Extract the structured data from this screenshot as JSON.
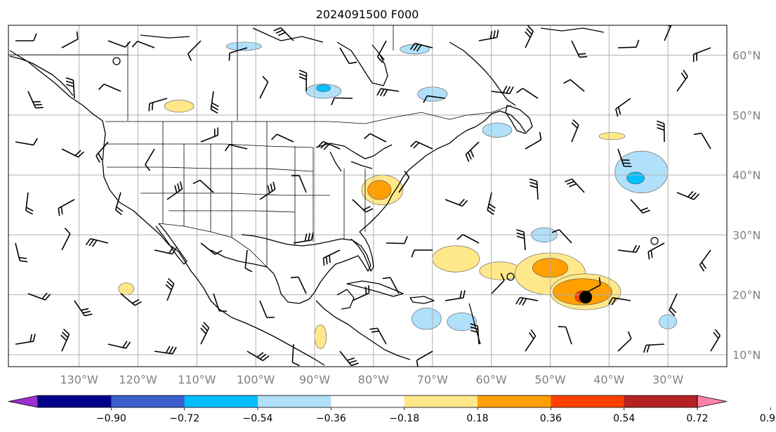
{
  "title": "2024091500 F000",
  "map": {
    "projection": "PlateCarree",
    "lon_range": [
      -142,
      -20
    ],
    "lat_range": [
      8,
      65
    ],
    "longitude_labels": [
      "130°W",
      "120°W",
      "110°W",
      "100°W",
      "90°W",
      "80°W",
      "70°W",
      "60°W",
      "50°W",
      "40°W",
      "30°W"
    ],
    "longitude_values": [
      -130,
      -120,
      -110,
      -100,
      -90,
      -80,
      -70,
      -60,
      -50,
      -40,
      -30
    ],
    "latitude_labels": [
      "60°N",
      "50°N",
      "40°N",
      "30°N",
      "20°N",
      "10°N"
    ],
    "latitude_values": [
      60,
      50,
      40,
      30,
      20,
      10
    ],
    "gridlines": true,
    "storm_center": [
      -44.5,
      19.5
    ]
  },
  "colorbar": {
    "tick_labels": [
      "−0.90",
      "−0.72",
      "−0.54",
      "−0.36",
      "−0.18",
      "0.18",
      "0.36",
      "0.54",
      "0.72",
      "0.90"
    ],
    "levels": [
      -0.9,
      -0.72,
      -0.54,
      -0.36,
      -0.18,
      0.18,
      0.36,
      0.54,
      0.72,
      0.9
    ],
    "colors": [
      "#9b30d0",
      "#00008b",
      "#3a5fcd",
      "#00bfff",
      "#b0e0fa",
      "#ffffff",
      "#ffe88a",
      "#ff9f00",
      "#ff4000",
      "#b22222",
      "#ff82ab"
    ],
    "extend": "both"
  },
  "contours": [
    {
      "level": 0.36,
      "color": "#ffe88a",
      "center": [
        -78.5,
        37.5
      ],
      "rx": 3.5,
      "ry": 2.5
    },
    {
      "level": 0.54,
      "color": "#ff9f00",
      "center": [
        -79,
        37.5
      ],
      "rx": 2,
      "ry": 1.6
    },
    {
      "level": 0.36,
      "color": "#ffe88a",
      "center": [
        -66,
        26
      ],
      "rx": 4,
      "ry": 2.2
    },
    {
      "level": 0.36,
      "color": "#ffe88a",
      "center": [
        -58.5,
        24
      ],
      "rx": 3.5,
      "ry": 1.5
    },
    {
      "level": 0.36,
      "color": "#ffe88a",
      "center": [
        -50,
        23.5
      ],
      "rx": 6,
      "ry": 3.5
    },
    {
      "level": 0.54,
      "color": "#ff9f00",
      "center": [
        -50,
        24.5
      ],
      "rx": 3,
      "ry": 1.6
    },
    {
      "level": 0.36,
      "color": "#ffe88a",
      "center": [
        -44,
        20.5
      ],
      "rx": 6,
      "ry": 3
    },
    {
      "level": 0.54,
      "color": "#ff9f00",
      "center": [
        -44.5,
        20.5
      ],
      "rx": 5,
      "ry": 2.2
    },
    {
      "level": 0.72,
      "color": "#ff4000",
      "center": [
        -44.5,
        19.7
      ],
      "rx": 1.3,
      "ry": 1
    },
    {
      "level": -0.18,
      "color": "#b0e0fa",
      "center": [
        -34.5,
        40.5
      ],
      "rx": 4.5,
      "ry": 3.5
    },
    {
      "level": -0.36,
      "color": "#00bfff",
      "center": [
        -35.5,
        39.5
      ],
      "rx": 1.5,
      "ry": 1
    },
    {
      "level": -0.18,
      "color": "#b0e0fa",
      "center": [
        -88.5,
        54
      ],
      "rx": 3,
      "ry": 1.2
    },
    {
      "level": -0.36,
      "color": "#00bfff",
      "center": [
        -88.5,
        54.5
      ],
      "rx": 1.2,
      "ry": 0.6
    },
    {
      "level": -0.18,
      "color": "#b0e0fa",
      "center": [
        -102,
        61.5
      ],
      "rx": 3,
      "ry": 0.7
    },
    {
      "level": -0.18,
      "color": "#b0e0fa",
      "center": [
        -70,
        53.5
      ],
      "rx": 2.5,
      "ry": 1.2
    },
    {
      "level": -0.18,
      "color": "#b0e0fa",
      "center": [
        -73,
        61
      ],
      "rx": 2.5,
      "ry": 0.8
    },
    {
      "level": -0.18,
      "color": "#b0e0fa",
      "center": [
        -71,
        16
      ],
      "rx": 2.5,
      "ry": 1.8
    },
    {
      "level": -0.18,
      "color": "#b0e0fa",
      "center": [
        -65,
        15.5
      ],
      "rx": 2.5,
      "ry": 1.5
    },
    {
      "level": -0.18,
      "color": "#b0e0fa",
      "center": [
        -51,
        30
      ],
      "rx": 2.2,
      "ry": 1.2
    },
    {
      "level": -0.18,
      "color": "#b0e0fa",
      "center": [
        -59,
        47.5
      ],
      "rx": 2.5,
      "ry": 1.2
    },
    {
      "level": -0.18,
      "color": "#b0e0fa",
      "center": [
        -30,
        15.5
      ],
      "rx": 1.5,
      "ry": 1.2
    },
    {
      "level": 0.36,
      "color": "#ffe88a",
      "center": [
        -113,
        51.5
      ],
      "rx": 2.5,
      "ry": 1
    },
    {
      "level": 0.36,
      "color": "#ffe88a",
      "center": [
        -122,
        21
      ],
      "rx": 1.3,
      "ry": 1
    },
    {
      "level": 0.36,
      "color": "#ffe88a",
      "center": [
        -89,
        13
      ],
      "rx": 1,
      "ry": 2
    },
    {
      "level": 0.36,
      "color": "#ffe88a",
      "center": [
        -39.5,
        46.5
      ],
      "rx": 2.2,
      "ry": 0.6
    }
  ]
}
